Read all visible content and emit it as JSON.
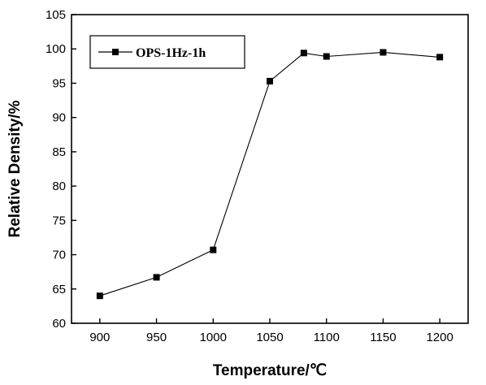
{
  "chart_data": {
    "type": "line",
    "title": "",
    "xlabel": "Temperature/℃",
    "ylabel": "Relative Density/%",
    "xlim": [
      875,
      1225
    ],
    "ylim": [
      60,
      105
    ],
    "xticks": [
      900,
      950,
      1000,
      1050,
      1100,
      1150,
      1200
    ],
    "yticks": [
      60,
      65,
      70,
      75,
      80,
      85,
      90,
      95,
      100,
      105
    ],
    "grid": false,
    "legend_position": "top-left",
    "series": [
      {
        "name": "OPS-1Hz-1h",
        "color": "#000000",
        "marker": "square",
        "x": [
          900,
          950,
          1000,
          1050,
          1080,
          1100,
          1150,
          1200
        ],
        "y": [
          64.0,
          66.7,
          70.7,
          95.3,
          99.4,
          98.9,
          99.5,
          98.8
        ]
      }
    ]
  }
}
